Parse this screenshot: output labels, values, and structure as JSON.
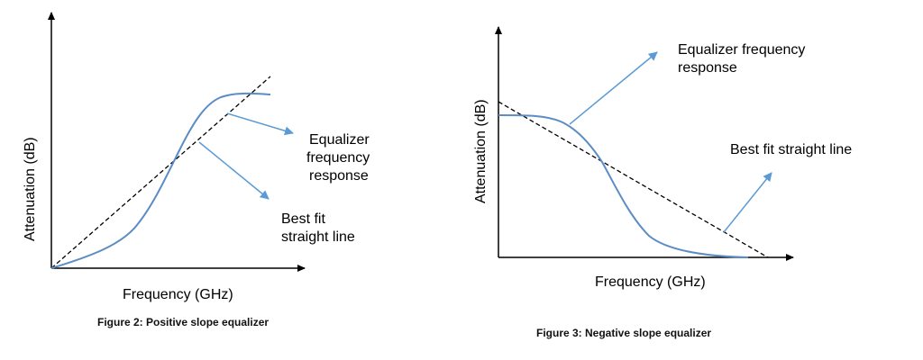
{
  "figure_left": {
    "y_axis_label": "Attenuation (dB)",
    "x_axis_label": "Frequency (GHz)",
    "curve_label": [
      "Equalizer",
      "frequency",
      "response"
    ],
    "line_label": [
      "Best fit",
      "straight line"
    ],
    "caption": "Figure 2: Positive slope equalizer"
  },
  "figure_right": {
    "y_axis_label": "Attenuation (dB)",
    "x_axis_label": "Frequency (GHz)",
    "curve_label": [
      "Equalizer frequency",
      "response"
    ],
    "line_label": [
      "Best fit straight line"
    ],
    "caption": "Figure 3: Negative slope equalizer"
  },
  "colors": {
    "curve": "#5b8cc4",
    "arrow": "#5b9bd5",
    "axis": "#000000",
    "fit_line": "#000000"
  }
}
